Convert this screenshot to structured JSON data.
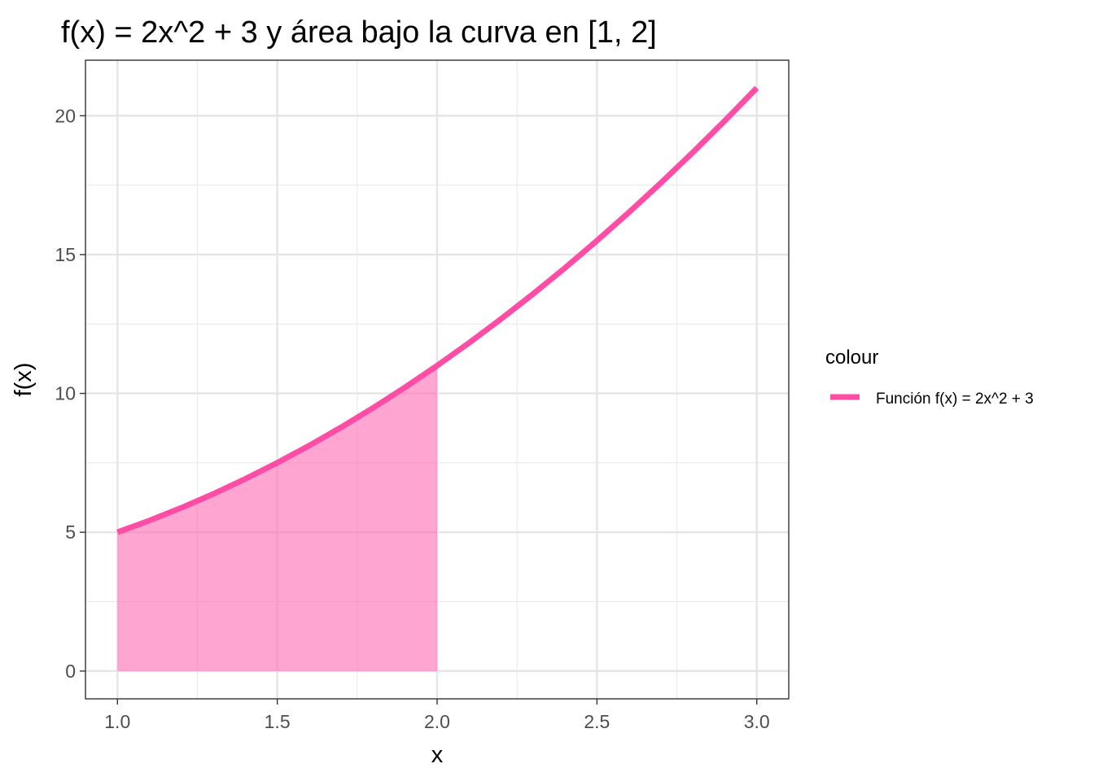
{
  "chart_data": {
    "type": "line",
    "title": "f(x) = 2x^2 + 3 y área bajo la curva en [1, 2]",
    "xlabel": "x",
    "ylabel": "f(x)",
    "xlim": [
      0.9,
      3.1
    ],
    "ylim": [
      -1.0,
      22.0
    ],
    "x_ticks": [
      1.0,
      1.5,
      2.0,
      2.5,
      3.0
    ],
    "x_tick_labels": [
      "1.0",
      "1.5",
      "2.0",
      "2.5",
      "3.0"
    ],
    "x_minor_ticks": [
      1.25,
      1.75,
      2.25,
      2.75
    ],
    "y_ticks": [
      0,
      5,
      10,
      15,
      20
    ],
    "y_tick_labels": [
      "0",
      "5",
      "10",
      "15",
      "20"
    ],
    "y_minor_ticks": [
      2.5,
      7.5,
      12.5,
      17.5
    ],
    "grid": true,
    "series": [
      {
        "name": "Función f(x) = 2x^2 + 3",
        "color": "#ff4da6",
        "x": [
          1.0,
          1.1,
          1.2,
          1.3,
          1.4,
          1.5,
          1.6,
          1.7,
          1.8,
          1.9,
          2.0,
          2.1,
          2.2,
          2.3,
          2.4,
          2.5,
          2.6,
          2.7,
          2.8,
          2.9,
          3.0
        ],
        "y": [
          5.0,
          5.42,
          5.88,
          6.38,
          6.92,
          7.5,
          8.12,
          8.78,
          9.48,
          10.22,
          11.0,
          11.82,
          12.68,
          13.58,
          14.52,
          15.5,
          16.52,
          17.58,
          18.68,
          19.82,
          21.0
        ]
      }
    ],
    "area": {
      "x_range": [
        1.0,
        2.0
      ],
      "color": "#ff69b4",
      "opacity": 0.6
    },
    "legend": {
      "title": "colour",
      "position": "right"
    }
  }
}
